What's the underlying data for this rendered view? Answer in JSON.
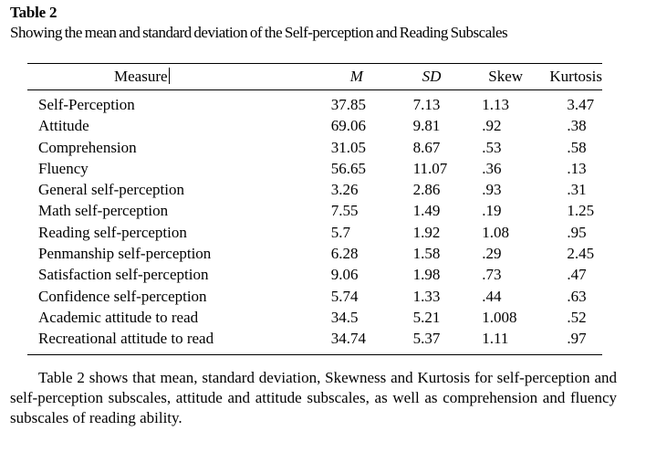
{
  "table_label": "Table 2",
  "caption": "Showing the mean and standard deviation of the Self-perception and Reading Subscales",
  "columns": [
    "Measure",
    "M",
    "SD",
    "Skew",
    "Kurtosis"
  ],
  "rows": [
    [
      "Self-Perception",
      "37.85",
      "7.13",
      "1.13",
      "3.47"
    ],
    [
      "Attitude",
      "69.06",
      "9.81",
      ".92",
      ".38"
    ],
    [
      "Comprehension",
      "31.05",
      "8.67",
      ".53",
      ".58"
    ],
    [
      "Fluency",
      "56.65",
      "11.07",
      ".36",
      ".13"
    ],
    [
      "General self-perception",
      "3.26",
      "2.86",
      ".93",
      ".31"
    ],
    [
      "Math self-perception",
      "7.55",
      "1.49",
      ".19",
      "1.25"
    ],
    [
      "Reading self-perception",
      "5.7",
      "1.92",
      "1.08",
      ".95"
    ],
    [
      "Penmanship self-perception",
      "6.28",
      "1.58",
      ".29",
      "2.45"
    ],
    [
      "Satisfaction self-perception",
      "9.06",
      "1.98",
      ".73",
      ".47"
    ],
    [
      "Confidence self-perception",
      "5.74",
      "1.33",
      ".44",
      ".63"
    ],
    [
      "Academic attitude to read",
      "34.5",
      "5.21",
      "1.008",
      ".52"
    ],
    [
      "Recreational attitude to read",
      "34.74",
      "5.37",
      "1.11",
      ".97"
    ]
  ],
  "paragraph": "Table 2 shows that mean, standard deviation, Skewness and Kurtosis for self-perception and self-perception subscales, attitude and attitude subscales, as well as comprehension and fluency subscales of reading ability."
}
